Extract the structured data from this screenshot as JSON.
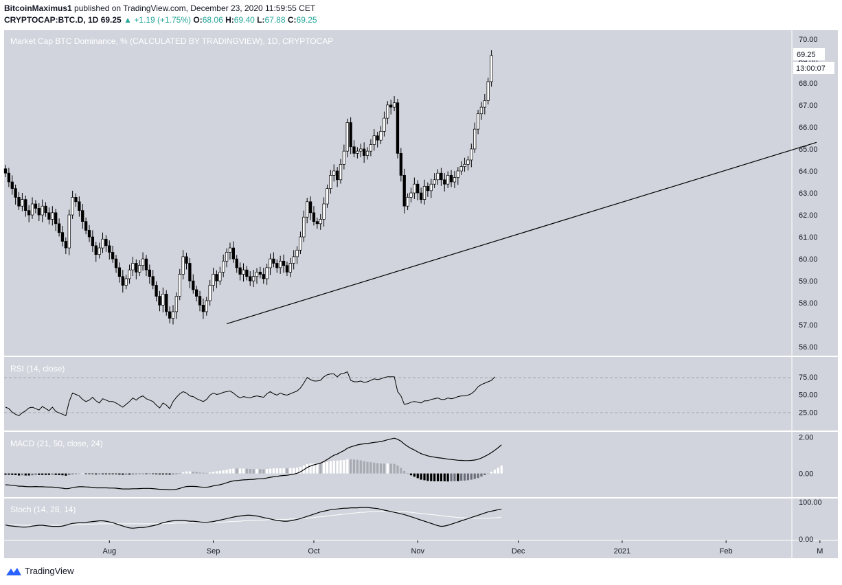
{
  "header": {
    "author": "BitcoinMaximus1",
    "published": "published on TradingView.com, December 23, 2020 11:59:55 CET",
    "symbol": "CRYPTOCAP:BTC.D, 1D",
    "last": "69.25",
    "change_arrow": "▲",
    "change": "+1.19 (+1.75%)",
    "o_label": "O:",
    "o": "68.06",
    "h_label": "H:",
    "h": "69.40",
    "l_label": "L:",
    "l": "67.88",
    "c_label": "C:",
    "c": "69.25"
  },
  "main_title": "Market Cap BTC Dominance, % (CALCULATED BY TRADINGVIEW), 1D, CRYPTOCAP",
  "price_label": "69.25",
  "countdown_label": "13:00:07",
  "rsi_title": "RSI (14, close)",
  "macd_title": "MACD (21, 50, close, 24)",
  "stoch_title": "Stoch (14, 28, 14)",
  "footer_brand": "TradingView",
  "colors": {
    "pane_bg": "#d1d4dc",
    "candle": "#000000",
    "up_body": "#ffffff",
    "accent": "#2962ff"
  },
  "chart_data": [
    {
      "type": "candlestick",
      "title": "Market Cap BTC Dominance, % (CALCULATED BY TRADINGVIEW), 1D, CRYPTOCAP",
      "x_ticks": [
        "Aug",
        "Sep",
        "Oct",
        "Nov",
        "Dec",
        "2021",
        "Feb",
        "M"
      ],
      "y_ticks": [
        "70.00",
        "69.00",
        "68.00",
        "67.00",
        "66.00",
        "65.00",
        "64.00",
        "63.00",
        "62.00",
        "61.00",
        "60.00",
        "59.00",
        "58.00",
        "57.00",
        "56.00"
      ],
      "ylim": [
        55.6,
        70.4
      ],
      "start_date": "2020-07-01",
      "close": [
        63.9,
        63.5,
        63.2,
        62.8,
        62.4,
        62.7,
        62.2,
        62.0,
        62.5,
        62.3,
        62.0,
        62.4,
        62.1,
        61.8,
        62.1,
        61.6,
        61.2,
        60.8,
        60.5,
        62.0,
        62.8,
        62.6,
        62.2,
        61.7,
        61.3,
        61.0,
        60.6,
        60.2,
        60.5,
        60.9,
        60.6,
        60.3,
        60.0,
        59.6,
        59.2,
        58.8,
        59.1,
        59.5,
        59.8,
        59.4,
        59.7,
        60.0,
        59.5,
        59.2,
        58.8,
        58.3,
        57.9,
        58.4,
        57.6,
        57.3,
        57.6,
        58.3,
        59.3,
        60.1,
        59.8,
        59.0,
        58.6,
        58.3,
        57.9,
        57.6,
        58.1,
        58.8,
        59.3,
        59.0,
        59.4,
        59.9,
        60.3,
        60.5,
        60.0,
        59.6,
        59.3,
        59.5,
        59.2,
        59.0,
        59.2,
        59.4,
        59.3,
        59.1,
        59.6,
        60.0,
        59.8,
        59.6,
        59.9,
        59.7,
        59.4,
        59.8,
        60.1,
        60.4,
        61.0,
        61.9,
        62.6,
        62.1,
        61.7,
        61.6,
        61.8,
        62.5,
        63.2,
        63.8,
        64.0,
        63.6,
        64.3,
        64.9,
        66.2,
        65.1,
        64.8,
        64.9,
        65.0,
        64.7,
        64.9,
        65.2,
        65.6,
        65.4,
        65.8,
        66.4,
        67.0,
        66.9,
        67.1,
        64.8,
        63.8,
        62.4,
        62.8,
        63.0,
        63.4,
        63.0,
        62.7,
        63.3,
        63.1,
        63.4,
        63.6,
        63.9,
        63.6,
        63.4,
        63.8,
        63.5,
        63.7,
        64.0,
        64.2,
        64.3,
        64.5,
        65.0,
        65.9,
        66.6,
        66.9,
        67.2,
        68.06,
        69.25
      ],
      "trendline": [
        {
          "date": "2020-09-05",
          "value": 57.05
        },
        {
          "date": "2021-02-28",
          "value": 65.3
        }
      ]
    },
    {
      "type": "line",
      "title": "RSI (14, close)",
      "y_ticks": [
        "75.00",
        "50.00",
        "25.00"
      ],
      "ylim": [
        0,
        100
      ],
      "levels": [
        70,
        30
      ],
      "values": [
        32,
        30,
        25,
        22,
        20,
        24,
        27,
        31,
        32,
        30,
        28,
        33,
        30,
        27,
        32,
        26,
        24,
        22,
        20,
        40,
        52,
        50,
        48,
        43,
        40,
        42,
        46,
        41,
        38,
        44,
        42,
        40,
        40,
        38,
        35,
        32,
        36,
        40,
        45,
        42,
        46,
        48,
        44,
        42,
        40,
        35,
        31,
        38,
        35,
        30,
        40,
        46,
        51,
        54,
        52,
        48,
        47,
        44,
        42,
        40,
        43,
        49,
        52,
        50,
        51,
        53,
        54,
        55,
        52,
        48,
        45,
        47,
        46,
        45,
        47,
        48,
        47,
        46,
        51,
        54,
        51,
        49,
        52,
        50,
        49,
        51,
        53,
        55,
        59,
        66,
        74,
        71,
        69,
        69,
        70,
        75,
        78,
        79,
        79,
        75,
        79,
        80,
        82,
        70,
        68,
        68,
        69,
        67,
        68,
        70,
        72,
        71,
        72,
        74,
        75,
        75,
        75,
        54,
        48,
        36,
        37,
        39,
        40,
        39,
        38,
        41,
        41,
        43,
        44,
        45,
        43,
        43,
        45,
        44,
        45,
        47,
        48,
        48,
        49,
        51,
        55,
        61,
        64,
        66,
        68,
        70,
        75
      ],
      "xlabel": "",
      "ylabel": ""
    },
    {
      "type": "line",
      "title": "MACD (21, 50, close, 24)",
      "y_ticks": [
        "2.00",
        "0.00"
      ],
      "ylim": [
        -1.3,
        2.1
      ],
      "series": [
        {
          "values": [
            -0.62,
            -0.63,
            -0.65,
            -0.67,
            -0.7,
            -0.7,
            -0.72,
            -0.73,
            -0.73,
            -0.72,
            -0.73,
            -0.73,
            -0.74,
            -0.75,
            -0.75,
            -0.77,
            -0.79,
            -0.81,
            -0.84,
            -0.82,
            -0.78,
            -0.75,
            -0.73,
            -0.73,
            -0.74,
            -0.75,
            -0.77,
            -0.79,
            -0.79,
            -0.79,
            -0.79,
            -0.8,
            -0.8,
            -0.81,
            -0.83,
            -0.85,
            -0.85,
            -0.85,
            -0.84,
            -0.84,
            -0.83,
            -0.82,
            -0.82,
            -0.82,
            -0.83,
            -0.85,
            -0.87,
            -0.87,
            -0.88,
            -0.9,
            -0.89,
            -0.87,
            -0.82,
            -0.76,
            -0.72,
            -0.71,
            -0.71,
            -0.72,
            -0.74,
            -0.76,
            -0.76,
            -0.73,
            -0.68,
            -0.65,
            -0.62,
            -0.57,
            -0.51,
            -0.45,
            -0.41,
            -0.39,
            -0.37,
            -0.35,
            -0.34,
            -0.33,
            -0.32,
            -0.3,
            -0.29,
            -0.28,
            -0.25,
            -0.21,
            -0.18,
            -0.16,
            -0.13,
            -0.11,
            -0.1,
            -0.07,
            -0.04,
            0.01,
            0.09,
            0.2,
            0.33,
            0.41,
            0.47,
            0.52,
            0.57,
            0.66,
            0.77,
            0.89,
            1.0,
            1.07,
            1.17,
            1.26,
            1.39,
            1.46,
            1.52,
            1.57,
            1.61,
            1.63,
            1.65,
            1.68,
            1.71,
            1.73,
            1.76,
            1.8,
            1.86,
            1.9,
            1.94,
            1.88,
            1.78,
            1.62,
            1.49,
            1.38,
            1.29,
            1.19,
            1.09,
            1.03,
            0.97,
            0.93,
            0.9,
            0.87,
            0.85,
            0.82,
            0.79,
            0.77,
            0.75,
            0.73,
            0.72,
            0.71,
            0.71,
            0.72,
            0.74,
            0.78,
            0.85,
            0.94,
            1.04,
            1.15,
            1.28,
            1.42,
            1.58
          ]
        },
        {
          "values": [
            -0.55,
            -0.56,
            -0.57,
            -0.58,
            -0.59,
            -0.6,
            -0.61,
            -0.62,
            -0.63,
            -0.64,
            -0.65,
            -0.65,
            -0.66,
            -0.67,
            -0.68,
            -0.69,
            -0.7,
            -0.71,
            -0.72,
            -0.73,
            -0.73,
            -0.73,
            -0.73,
            -0.73,
            -0.73,
            -0.74,
            -0.74,
            -0.74,
            -0.75,
            -0.75,
            -0.75,
            -0.76,
            -0.76,
            -0.77,
            -0.77,
            -0.78,
            -0.79,
            -0.79,
            -0.79,
            -0.8,
            -0.8,
            -0.8,
            -0.8,
            -0.81,
            -0.81,
            -0.81,
            -0.82,
            -0.82,
            -0.83,
            -0.84,
            -0.84,
            -0.84,
            -0.84,
            -0.83,
            -0.83,
            -0.82,
            -0.81,
            -0.81,
            -0.8,
            -0.8,
            -0.79,
            -0.79,
            -0.78,
            -0.77,
            -0.76,
            -0.74,
            -0.72,
            -0.7,
            -0.68,
            -0.66,
            -0.64,
            -0.62,
            -0.6,
            -0.58,
            -0.56,
            -0.55,
            -0.53,
            -0.51,
            -0.5,
            -0.48,
            -0.46,
            -0.44,
            -0.42,
            -0.4,
            -0.38,
            -0.36,
            -0.34,
            -0.31,
            -0.28,
            -0.24,
            -0.19,
            -0.14,
            -0.09,
            -0.04,
            0.01,
            0.07,
            0.14,
            0.21,
            0.29,
            0.36,
            0.44,
            0.52,
            0.6,
            0.68,
            0.75,
            0.82,
            0.89,
            0.95,
            1.01,
            1.06,
            1.11,
            1.16,
            1.21,
            1.26,
            1.31,
            1.36,
            1.41,
            1.44,
            1.47,
            1.48,
            1.48,
            1.48,
            1.47,
            1.45,
            1.43,
            1.4,
            1.38,
            1.35,
            1.33,
            1.3,
            1.28,
            1.25,
            1.23,
            1.2,
            1.17,
            1.15,
            1.12,
            1.1,
            1.08,
            1.06,
            1.04,
            1.03,
            1.02,
            1.03,
            1.04,
            1.05,
            1.07,
            1.1,
            1.14
          ]
        }
      ],
      "xlabel": "",
      "ylabel": ""
    },
    {
      "type": "line",
      "title": "Stoch (14, 28, 14)",
      "y_ticks": [
        "100.00",
        "0.00"
      ],
      "ylim": [
        0,
        100
      ],
      "series": [
        {
          "values": [
            38,
            36,
            35,
            34,
            33,
            32,
            32,
            33,
            35,
            36,
            37,
            37,
            36,
            35,
            34,
            34,
            34,
            35,
            37,
            40,
            42,
            43,
            44,
            44,
            45,
            46,
            47,
            48,
            49,
            49,
            48,
            46,
            44,
            41,
            38,
            35,
            32,
            30,
            29,
            30,
            31,
            31,
            32,
            34,
            36,
            38,
            41,
            44,
            46,
            48,
            49,
            50,
            50,
            50,
            49,
            48,
            48,
            47,
            46,
            45,
            45,
            46,
            47,
            49,
            51,
            53,
            55,
            57,
            59,
            61,
            62,
            63,
            64,
            64,
            63,
            62,
            60,
            58,
            56,
            54,
            52,
            50,
            49,
            48,
            48,
            49,
            51,
            53,
            55,
            58,
            61,
            64,
            67,
            70,
            73,
            75,
            77,
            79,
            80,
            81,
            82,
            83,
            83,
            84,
            84,
            84,
            85,
            85,
            85,
            84,
            83,
            82,
            80,
            78,
            76,
            74,
            72,
            70,
            68,
            66,
            63,
            60,
            57,
            54,
            51,
            48,
            45,
            42,
            39,
            36,
            34,
            35,
            37,
            40,
            43,
            46,
            49,
            52,
            55,
            58,
            61,
            64,
            67,
            70,
            73,
            75,
            77,
            79,
            80
          ]
        },
        {
          "values": [
            38,
            38,
            38,
            38,
            38,
            37,
            37,
            37,
            37,
            37,
            37,
            37,
            37,
            37,
            37,
            37,
            37,
            37,
            38,
            38,
            38,
            38,
            39,
            39,
            39,
            40,
            40,
            40,
            41,
            41,
            41,
            41,
            41,
            41,
            41,
            41,
            41,
            41,
            41,
            41,
            41,
            41,
            41,
            41,
            41,
            41,
            41,
            41,
            42,
            42,
            42,
            43,
            43,
            43,
            43,
            44,
            44,
            44,
            44,
            44,
            44,
            44,
            45,
            45,
            45,
            46,
            46,
            47,
            47,
            48,
            48,
            49,
            49,
            50,
            50,
            51,
            51,
            51,
            52,
            52,
            52,
            53,
            53,
            53,
            53,
            54,
            54,
            54,
            55,
            55,
            56,
            57,
            58,
            59,
            60,
            61,
            62,
            63,
            64,
            65,
            66,
            67,
            68,
            69,
            70,
            71,
            72,
            72,
            73,
            74,
            74,
            75,
            75,
            75,
            75,
            75,
            75,
            75,
            74,
            74,
            73,
            72,
            71,
            70,
            69,
            68,
            67,
            66,
            65,
            64,
            63,
            62,
            61,
            60,
            59,
            58,
            58,
            57,
            57,
            56,
            56,
            56,
            56,
            56,
            56,
            57,
            57,
            58,
            59
          ]
        }
      ],
      "xlabel": "",
      "ylabel": ""
    }
  ]
}
